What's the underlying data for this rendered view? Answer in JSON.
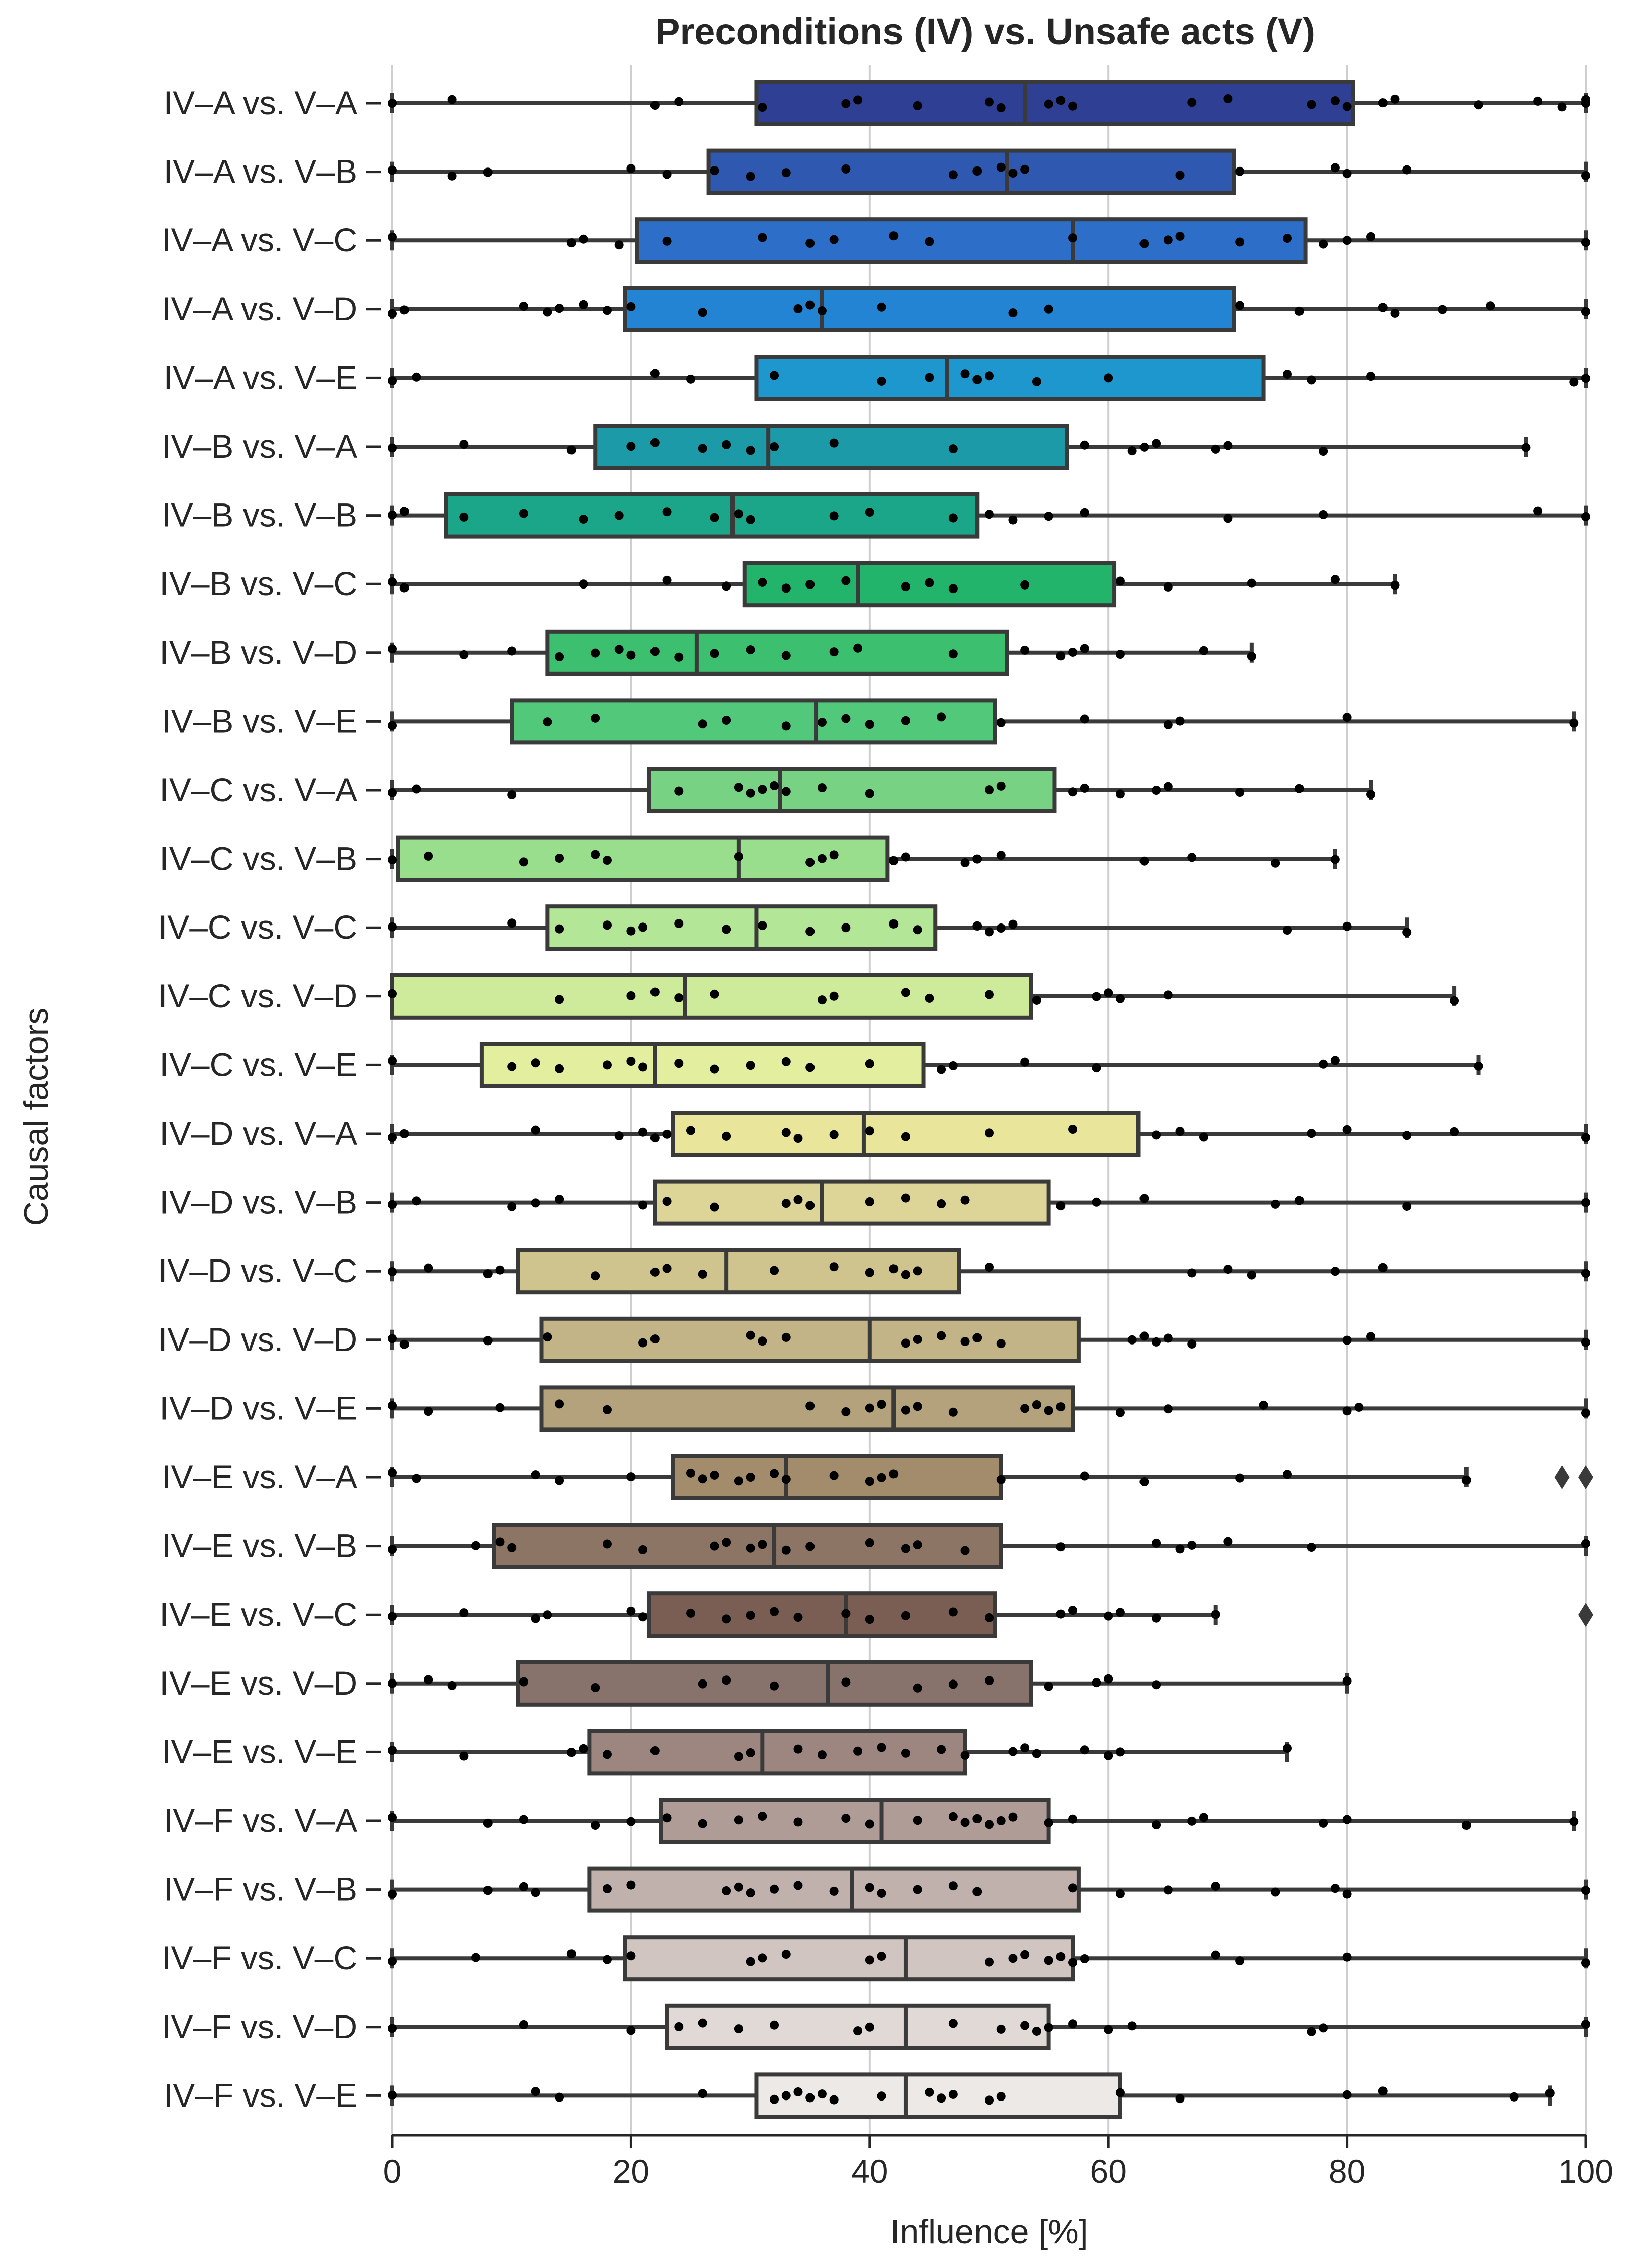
{
  "chart_data": {
    "type": "box",
    "title": "Preconditions (IV) vs. Unsafe acts (V)",
    "xlabel": "Influence [%]",
    "ylabel": "Causal factors",
    "xlim": [
      0,
      100
    ],
    "xticks": [
      0,
      20,
      40,
      60,
      80,
      100
    ],
    "grid": "vertical",
    "orientation": "horizontal",
    "series": [
      {
        "name": "IV–A vs. V–A",
        "color": "#2f3f93",
        "q1": 30.5,
        "median": 53,
        "q3": 80.5,
        "whisker_low": 0,
        "whisker_high": 100,
        "fliers": [],
        "points": [
          0,
          5,
          22,
          24,
          31,
          38,
          39,
          44,
          50,
          51,
          55,
          56,
          57,
          67,
          70,
          77,
          79,
          80,
          83,
          84,
          91,
          96,
          98,
          100,
          100
        ]
      },
      {
        "name": "IV–A vs. V–B",
        "color": "#2f58b0",
        "q1": 26.5,
        "median": 51.5,
        "q3": 70.5,
        "whisker_low": 0,
        "whisker_high": 100,
        "fliers": [],
        "points": [
          0,
          5,
          8,
          20,
          23,
          27,
          30,
          33,
          38,
          47,
          49,
          51,
          52,
          53,
          66,
          71,
          79,
          80,
          85,
          100
        ]
      },
      {
        "name": "IV–A vs. V–C",
        "color": "#2c6ec8",
        "q1": 20.5,
        "median": 57,
        "q3": 76.5,
        "whisker_low": 0,
        "whisker_high": 100,
        "fliers": [],
        "points": [
          0,
          15,
          16,
          19,
          23,
          31,
          35,
          37,
          42,
          45,
          57,
          63,
          65,
          66,
          71,
          75,
          78,
          80,
          82,
          100
        ]
      },
      {
        "name": "IV–A vs. V–D",
        "color": "#2484d4",
        "q1": 19.5,
        "median": 36,
        "q3": 70.5,
        "whisker_low": 0,
        "whisker_high": 100,
        "fliers": [],
        "points": [
          0,
          1,
          11,
          13,
          14,
          16,
          18,
          20,
          26,
          34,
          35,
          36,
          41,
          52,
          55,
          71,
          76,
          83,
          84,
          88,
          92,
          100
        ]
      },
      {
        "name": "IV–A vs. V–E",
        "color": "#1e97cf",
        "q1": 30.5,
        "median": 46.5,
        "q3": 73,
        "whisker_low": 0,
        "whisker_high": 100,
        "fliers": [],
        "points": [
          0,
          2,
          22,
          25,
          32,
          41,
          45,
          48,
          49,
          50,
          54,
          60,
          75,
          77,
          82,
          99,
          100
        ]
      },
      {
        "name": "IV–B vs. V–A",
        "color": "#1d9aa8",
        "q1": 17,
        "median": 31.5,
        "q3": 56.5,
        "whisker_low": 0,
        "whisker_high": 95,
        "fliers": [],
        "points": [
          0,
          6,
          15,
          20,
          22,
          26,
          28,
          30,
          32,
          37,
          47,
          58,
          62,
          63,
          64,
          69,
          70,
          78,
          95
        ]
      },
      {
        "name": "IV–B vs. V–B",
        "color": "#1ba68a",
        "q1": 4.5,
        "median": 28.5,
        "q3": 49,
        "whisker_low": 0,
        "whisker_high": 100,
        "fliers": [],
        "points": [
          0,
          1,
          6,
          11,
          16,
          19,
          23,
          27,
          29,
          30,
          37,
          40,
          47,
          50,
          52,
          55,
          58,
          70,
          78,
          96,
          100
        ]
      },
      {
        "name": "IV–B vs. V–C",
        "color": "#22b46b",
        "q1": 29.5,
        "median": 39,
        "q3": 60.5,
        "whisker_low": 0,
        "whisker_high": 84,
        "fliers": [],
        "points": [
          0,
          1,
          16,
          23,
          28,
          31,
          33,
          35,
          38,
          43,
          45,
          47,
          53,
          61,
          65,
          72,
          79,
          84
        ]
      },
      {
        "name": "IV–B vs. V–D",
        "color": "#3cc070",
        "q1": 13,
        "median": 25.5,
        "q3": 51.5,
        "whisker_low": 0,
        "whisker_high": 72,
        "fliers": [],
        "points": [
          0,
          6,
          10,
          14,
          17,
          19,
          20,
          22,
          24,
          27,
          30,
          33,
          37,
          39,
          47,
          53,
          56,
          57,
          58,
          61,
          68,
          72
        ]
      },
      {
        "name": "IV–B vs. V–E",
        "color": "#52c97a",
        "q1": 10,
        "median": 35.5,
        "q3": 50.5,
        "whisker_low": 0,
        "whisker_high": 99,
        "fliers": [],
        "points": [
          0,
          13,
          17,
          26,
          28,
          33,
          36,
          38,
          40,
          43,
          46,
          51,
          58,
          65,
          66,
          80,
          99
        ]
      },
      {
        "name": "IV–C vs. V–A",
        "color": "#78d283",
        "q1": 21.5,
        "median": 32.5,
        "q3": 55.5,
        "whisker_low": 0,
        "whisker_high": 82,
        "fliers": [],
        "points": [
          0,
          2,
          10,
          24,
          29,
          30,
          31,
          32,
          33,
          36,
          40,
          50,
          51,
          57,
          58,
          61,
          64,
          65,
          71,
          76,
          82
        ]
      },
      {
        "name": "IV–C vs. V–B",
        "color": "#98de8c",
        "q1": 0.5,
        "median": 29,
        "q3": 41.5,
        "whisker_low": 0,
        "whisker_high": 79,
        "fliers": [],
        "points": [
          0,
          3,
          11,
          14,
          17,
          18,
          29,
          35,
          36,
          37,
          42,
          43,
          48,
          49,
          51,
          63,
          67,
          74,
          79
        ]
      },
      {
        "name": "IV–C vs. V–C",
        "color": "#b3e696",
        "q1": 13,
        "median": 30.5,
        "q3": 45.5,
        "whisker_low": 0,
        "whisker_high": 85,
        "fliers": [],
        "points": [
          0,
          10,
          14,
          18,
          20,
          21,
          24,
          28,
          31,
          35,
          38,
          42,
          44,
          49,
          50,
          51,
          52,
          75,
          80,
          85
        ]
      },
      {
        "name": "IV–C vs. V–D",
        "color": "#cdeb9a",
        "q1": 0,
        "median": 24.5,
        "q3": 53.5,
        "whisker_low": 0,
        "whisker_high": 89,
        "fliers": [],
        "points": [
          0,
          14,
          20,
          22,
          24,
          27,
          36,
          37,
          43,
          45,
          50,
          54,
          59,
          60,
          61,
          65,
          89
        ]
      },
      {
        "name": "IV–C vs. V–E",
        "color": "#e3ef9f",
        "q1": 7.5,
        "median": 22,
        "q3": 44.5,
        "whisker_low": 0,
        "whisker_high": 91,
        "fliers": [],
        "points": [
          0,
          10,
          12,
          14,
          18,
          20,
          21,
          24,
          27,
          30,
          33,
          35,
          40,
          46,
          47,
          53,
          59,
          78,
          79,
          91
        ]
      },
      {
        "name": "IV–D vs. V–A",
        "color": "#e9e59b",
        "q1": 23.5,
        "median": 39.5,
        "q3": 62.5,
        "whisker_low": 0,
        "whisker_high": 100,
        "fliers": [],
        "points": [
          0,
          1,
          12,
          19,
          21,
          22,
          23,
          25,
          28,
          33,
          34,
          37,
          40,
          43,
          50,
          57,
          64,
          66,
          68,
          77,
          80,
          85,
          89,
          100
        ]
      },
      {
        "name": "IV–D vs. V–B",
        "color": "#ddd598",
        "q1": 22,
        "median": 36,
        "q3": 55,
        "whisker_low": 0,
        "whisker_high": 100,
        "fliers": [],
        "points": [
          0,
          2,
          10,
          12,
          14,
          21,
          23,
          27,
          33,
          34,
          35,
          40,
          43,
          46,
          48,
          56,
          59,
          63,
          74,
          76,
          85,
          100
        ]
      },
      {
        "name": "IV–D vs. V–C",
        "color": "#d0c48e",
        "q1": 10.5,
        "median": 28,
        "q3": 47.5,
        "whisker_low": 0,
        "whisker_high": 100,
        "fliers": [],
        "points": [
          0,
          3,
          8,
          9,
          17,
          22,
          23,
          26,
          32,
          37,
          40,
          42,
          43,
          44,
          50,
          67,
          70,
          72,
          79,
          83,
          100
        ]
      },
      {
        "name": "IV–D vs. V–D",
        "color": "#c2b487",
        "q1": 12.5,
        "median": 40,
        "q3": 57.5,
        "whisker_low": 0,
        "whisker_high": 100,
        "fliers": [],
        "points": [
          0,
          1,
          8,
          13,
          21,
          22,
          30,
          31,
          33,
          43,
          44,
          46,
          48,
          49,
          51,
          62,
          63,
          64,
          65,
          67,
          80,
          82,
          100
        ]
      },
      {
        "name": "IV–D vs. V–E",
        "color": "#b4a27d",
        "q1": 12.5,
        "median": 42,
        "q3": 57,
        "whisker_low": 0,
        "whisker_high": 100,
        "fliers": [],
        "points": [
          0,
          3,
          9,
          14,
          18,
          35,
          38,
          40,
          41,
          43,
          44,
          47,
          53,
          54,
          55,
          56,
          61,
          65,
          73,
          80,
          81,
          100
        ]
      },
      {
        "name": "IV–E vs. V–A",
        "color": "#a38c6c",
        "q1": 23.5,
        "median": 33,
        "q3": 51,
        "whisker_low": 0,
        "whisker_high": 90,
        "fliers": [
          98,
          100
        ],
        "points": [
          0,
          2,
          12,
          14,
          20,
          25,
          26,
          27,
          29,
          30,
          32,
          33,
          37,
          40,
          41,
          42,
          51,
          58,
          63,
          71,
          75,
          90
        ]
      },
      {
        "name": "IV–E vs. V–B",
        "color": "#8c7565",
        "q1": 8.5,
        "median": 32,
        "q3": 51,
        "whisker_low": 0,
        "whisker_high": 100,
        "fliers": [],
        "points": [
          0,
          7,
          9,
          10,
          18,
          21,
          27,
          28,
          30,
          31,
          33,
          35,
          40,
          43,
          44,
          48,
          56,
          64,
          66,
          67,
          70,
          77,
          100
        ]
      },
      {
        "name": "IV–E vs. V–C",
        "color": "#7a5e54",
        "q1": 21.5,
        "median": 38,
        "q3": 50.5,
        "whisker_low": 0,
        "whisker_high": 69,
        "fliers": [
          100
        ],
        "points": [
          0,
          6,
          12,
          13,
          20,
          21,
          25,
          28,
          30,
          32,
          34,
          38,
          40,
          43,
          47,
          50,
          56,
          57,
          60,
          61,
          64,
          69
        ]
      },
      {
        "name": "IV–E vs. V–D",
        "color": "#87736c",
        "q1": 10.5,
        "median": 36.5,
        "q3": 53.5,
        "whisker_low": 0,
        "whisker_high": 80,
        "fliers": [],
        "points": [
          0,
          3,
          5,
          11,
          17,
          26,
          28,
          32,
          38,
          44,
          47,
          50,
          55,
          59,
          60,
          64,
          80
        ]
      },
      {
        "name": "IV–E vs. V–E",
        "color": "#9e8680",
        "q1": 16.5,
        "median": 31,
        "q3": 48,
        "whisker_low": 0,
        "whisker_high": 75,
        "fliers": [],
        "points": [
          0,
          6,
          15,
          16,
          18,
          22,
          29,
          30,
          34,
          36,
          39,
          41,
          43,
          46,
          48,
          52,
          53,
          54,
          58,
          60,
          61,
          75
        ]
      },
      {
        "name": "IV–F vs. V–A",
        "color": "#b09c97",
        "q1": 22.5,
        "median": 41,
        "q3": 55,
        "whisker_low": 0,
        "whisker_high": 99,
        "fliers": [],
        "points": [
          0,
          8,
          11,
          17,
          20,
          23,
          26,
          29,
          31,
          34,
          38,
          40,
          44,
          47,
          48,
          49,
          50,
          51,
          52,
          55,
          57,
          64,
          67,
          68,
          78,
          80,
          90,
          99
        ]
      },
      {
        "name": "IV–F vs. V–B",
        "color": "#c1b1ad",
        "q1": 16.5,
        "median": 38.5,
        "q3": 57.5,
        "whisker_low": 0,
        "whisker_high": 100,
        "fliers": [],
        "points": [
          0,
          8,
          11,
          12,
          18,
          20,
          28,
          29,
          30,
          32,
          34,
          37,
          40,
          41,
          44,
          47,
          49,
          57,
          61,
          65,
          69,
          74,
          79,
          80,
          100
        ]
      },
      {
        "name": "IV–F vs. V–C",
        "color": "#d1c5c2",
        "q1": 19.5,
        "median": 43,
        "q3": 57,
        "whisker_low": 0,
        "whisker_high": 100,
        "fliers": [],
        "points": [
          0,
          7,
          15,
          18,
          20,
          30,
          31,
          33,
          40,
          41,
          50,
          52,
          53,
          55,
          56,
          57,
          58,
          69,
          71,
          80,
          100
        ]
      },
      {
        "name": "IV–F vs. V–D",
        "color": "#e1d9d6",
        "q1": 23,
        "median": 43,
        "q3": 55,
        "whisker_low": 0,
        "whisker_high": 100,
        "fliers": [],
        "points": [
          0,
          11,
          20,
          24,
          26,
          29,
          32,
          39,
          40,
          47,
          51,
          53,
          54,
          55,
          57,
          60,
          62,
          77,
          78,
          100
        ]
      },
      {
        "name": "IV–F vs. V–E",
        "color": "#ece9e6",
        "q1": 30.5,
        "median": 43,
        "q3": 61,
        "whisker_low": 0,
        "whisker_high": 97,
        "fliers": [],
        "points": [
          0,
          12,
          14,
          26,
          32,
          33,
          34,
          35,
          36,
          37,
          41,
          45,
          46,
          47,
          50,
          51,
          61,
          66,
          80,
          83,
          94,
          97
        ]
      }
    ]
  }
}
